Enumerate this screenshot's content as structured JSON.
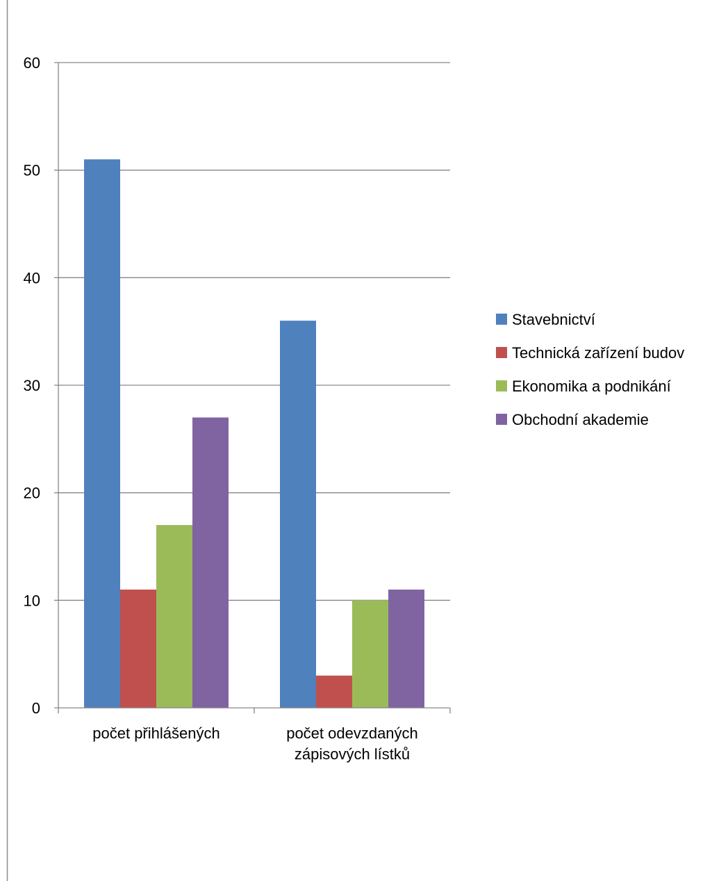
{
  "chart_data": {
    "type": "bar",
    "title": "",
    "xlabel": "",
    "ylabel": "",
    "ylim": [
      0,
      60
    ],
    "yticks": [
      0,
      10,
      20,
      30,
      40,
      50,
      60
    ],
    "grid": true,
    "legend_position": "right",
    "categories": [
      [
        "počet přihlášených"
      ],
      [
        "počet odevzdaných",
        "zápisových lístků"
      ]
    ],
    "series": [
      {
        "name": "Stavebnictví",
        "color": "#4f81bd",
        "values": [
          51,
          36
        ]
      },
      {
        "name": "Technická zařízení budov",
        "color": "#c0504d",
        "values": [
          11,
          3
        ]
      },
      {
        "name": "Ekonomika a podnikání",
        "color": "#9bbb59",
        "values": [
          17,
          10
        ]
      },
      {
        "name": "Obchodní akademie",
        "color": "#8064a2",
        "values": [
          27,
          11
        ]
      }
    ]
  }
}
